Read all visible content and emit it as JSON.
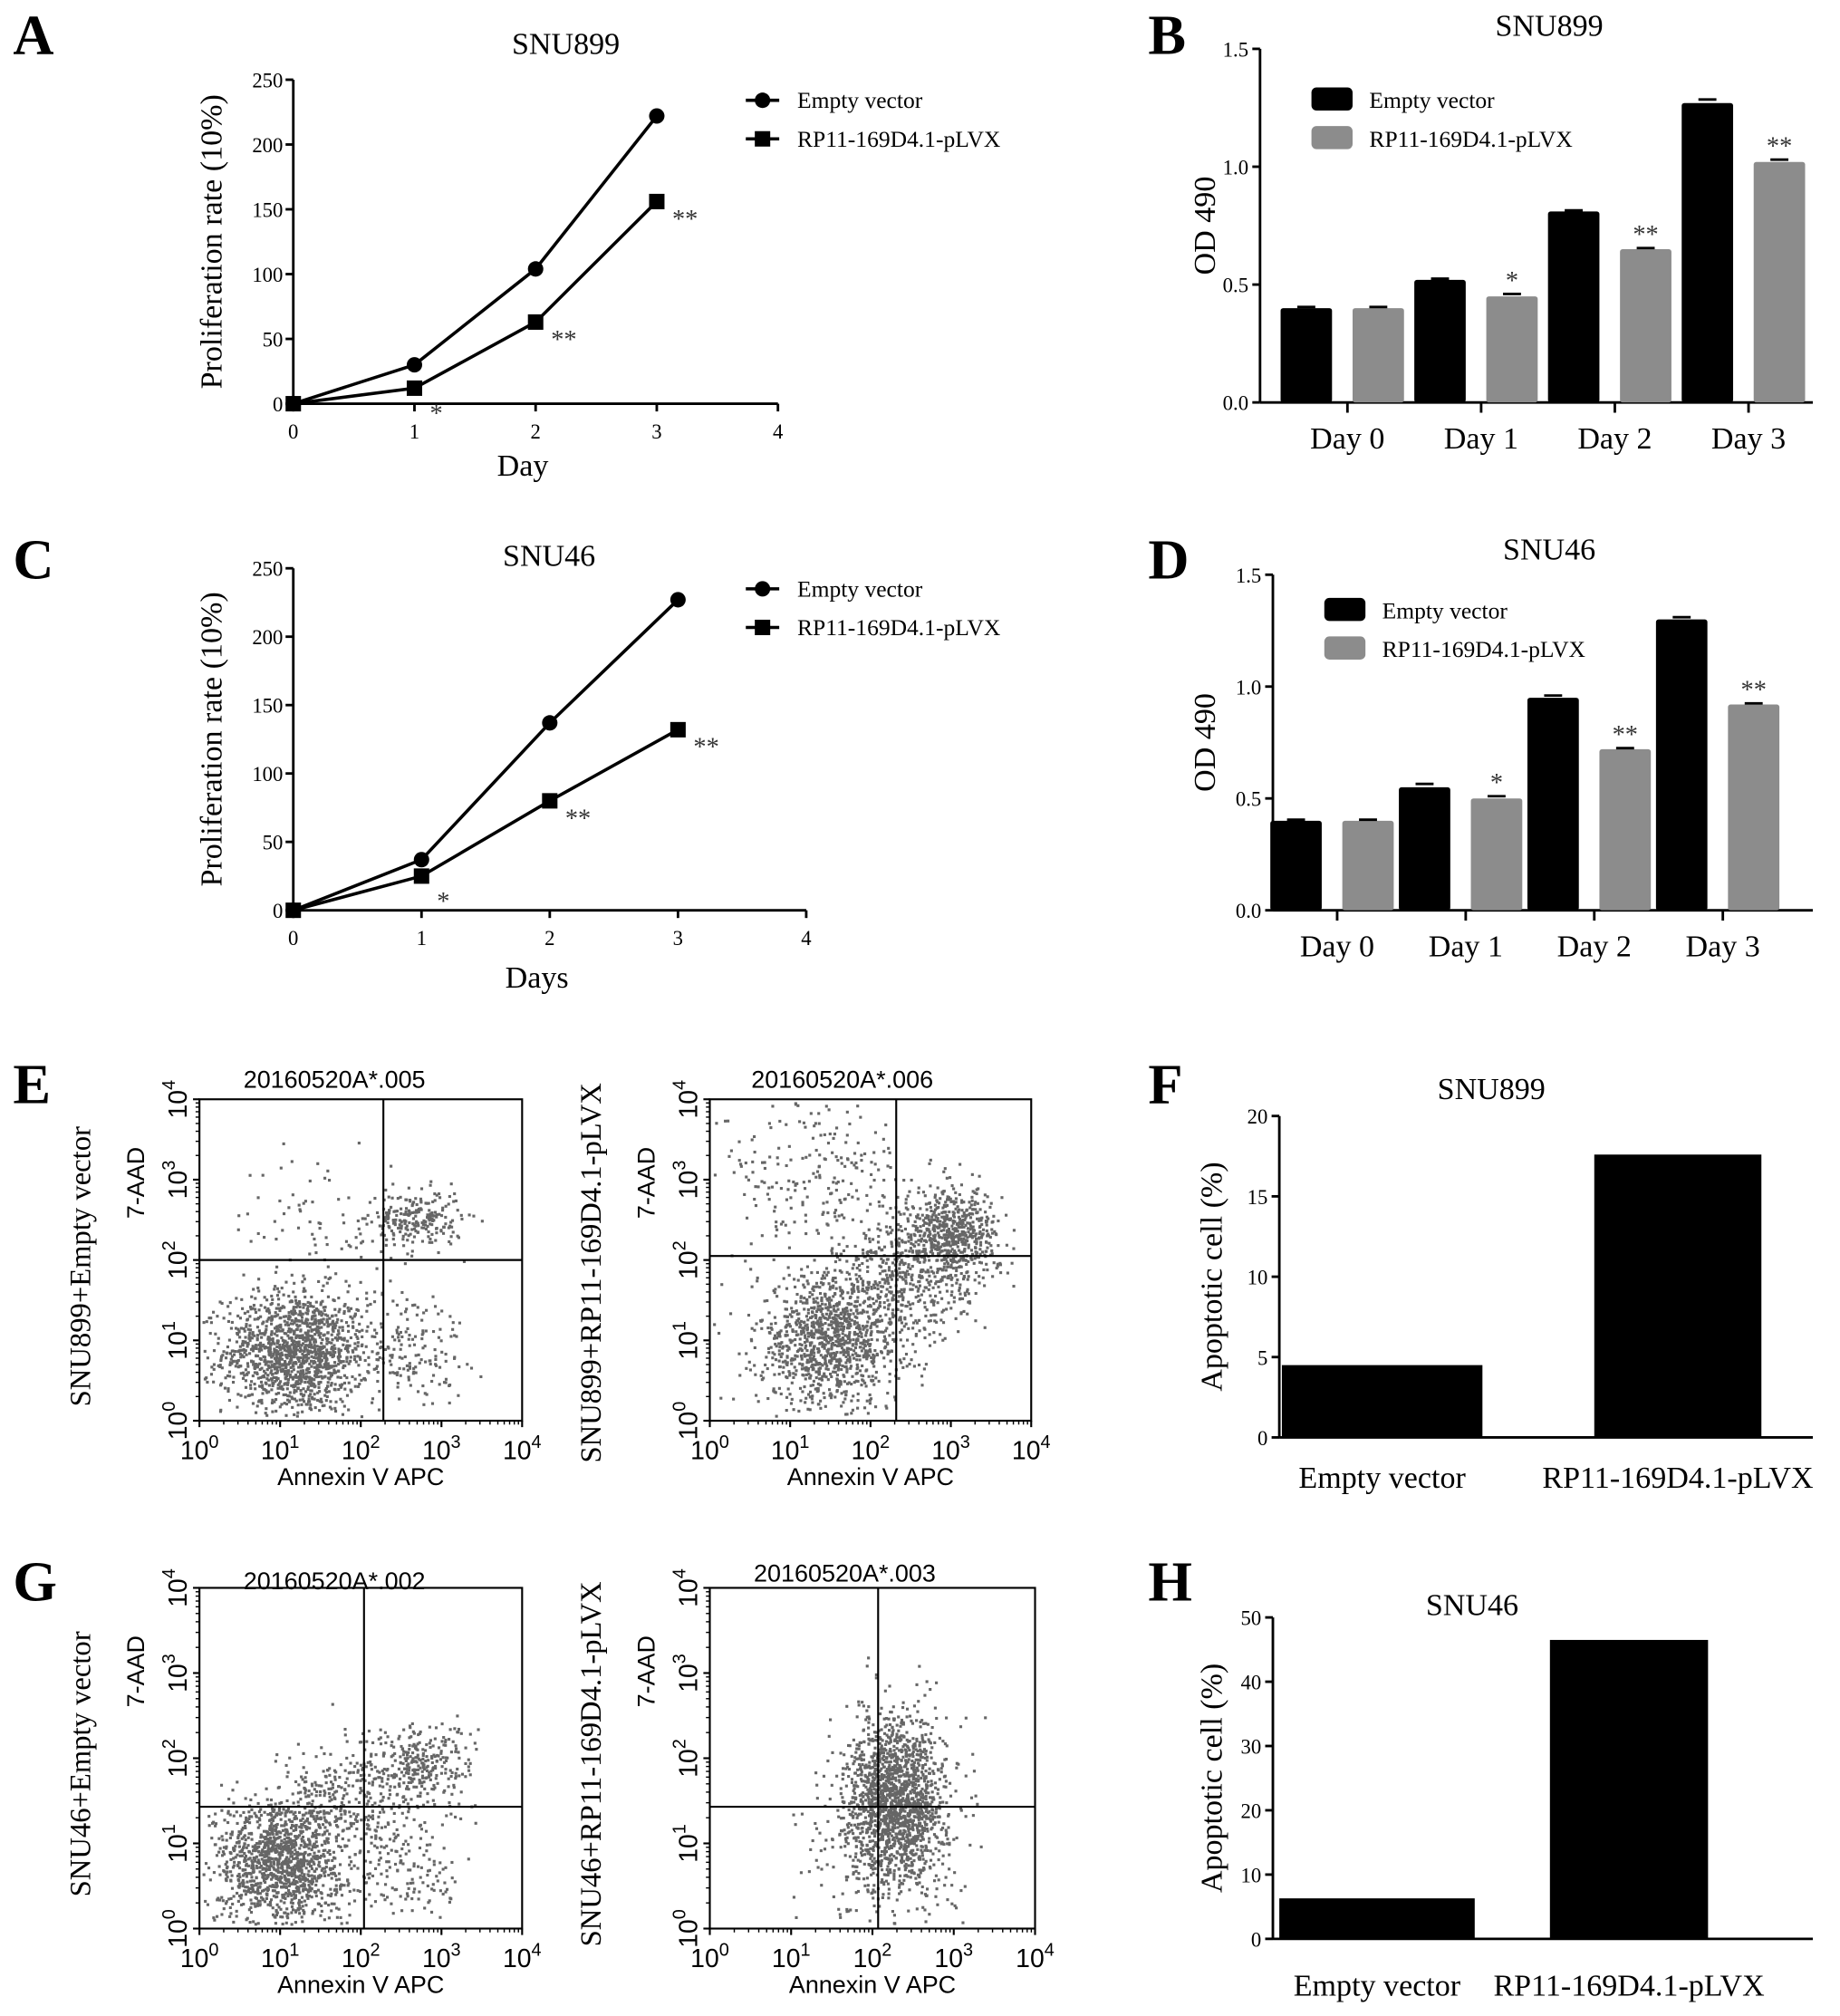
{
  "panel_letters": [
    "A",
    "B",
    "C",
    "D",
    "E",
    "F",
    "G",
    "H"
  ],
  "side_labels": {
    "e_left": "SNU899+Empty vector",
    "e_right": "SNU899+RP11-169D4.1-pLVX",
    "g_left": "SNU46+Empty vector",
    "g_right": "SNU46+RP11-169D4.1-pLVX"
  },
  "colors": {
    "empty_vector": "#000000",
    "rp11": "#8c8c8c",
    "events": "#666666"
  },
  "chart_data": [
    {
      "panel": "A",
      "type": "line",
      "title": "SNU899",
      "xlabel": "Day",
      "ylabel": "Proliferation rate (10%)",
      "x": [
        0,
        1,
        2,
        3
      ],
      "xlim": [
        0,
        4
      ],
      "xticks": [
        0,
        1,
        2,
        3,
        4
      ],
      "ylim": [
        0,
        250
      ],
      "yticks": [
        0,
        50,
        100,
        150,
        200,
        250
      ],
      "series": [
        {
          "name": "Empty vector",
          "marker": "circle",
          "values": [
            0,
            30,
            104,
            222
          ]
        },
        {
          "name": "RP11-169D4.1-pLVX",
          "marker": "square",
          "values": [
            0,
            12,
            63,
            156
          ],
          "significance": [
            "",
            "*",
            "**",
            "**"
          ]
        }
      ],
      "legend": "top-right"
    },
    {
      "panel": "B",
      "type": "bar",
      "title": "SNU899",
      "xlabel": "",
      "ylabel": "OD 490",
      "categories": [
        "Day 0",
        "Day 1",
        "Day 2",
        "Day 3"
      ],
      "ylim": [
        0,
        1.5
      ],
      "yticks": [
        "0.0",
        "0.5",
        "1.0",
        "1.5"
      ],
      "series": [
        {
          "name": "Empty vector",
          "values": [
            0.4,
            0.52,
            0.81,
            1.27
          ],
          "errors": [
            0.005,
            0.005,
            0.005,
            0.015
          ]
        },
        {
          "name": "RP11-169D4.1-pLVX",
          "values": [
            0.4,
            0.45,
            0.65,
            1.02
          ],
          "errors": [
            0.005,
            0.01,
            0.005,
            0.01
          ],
          "significance": [
            "",
            "*",
            "**",
            "**"
          ]
        }
      ],
      "legend": "top-left"
    },
    {
      "panel": "C",
      "type": "line",
      "title": "SNU46",
      "xlabel": "Days",
      "ylabel": "Proliferation rate (10%)",
      "x": [
        0,
        1,
        2,
        3
      ],
      "xlim": [
        0,
        4
      ],
      "xticks": [
        0,
        1,
        2,
        3,
        4
      ],
      "ylim": [
        0,
        250
      ],
      "yticks": [
        0,
        50,
        100,
        150,
        200,
        250
      ],
      "series": [
        {
          "name": "Empty vector",
          "marker": "circle",
          "values": [
            0,
            37,
            137,
            227
          ]
        },
        {
          "name": "RP11-169D4.1-pLVX",
          "marker": "square",
          "values": [
            0,
            25,
            80,
            132
          ],
          "significance": [
            "",
            "*",
            "**",
            "**"
          ]
        }
      ],
      "legend": "top-right"
    },
    {
      "panel": "D",
      "type": "bar",
      "title": "SNU46",
      "xlabel": "",
      "ylabel": "OD 490",
      "categories": [
        "Day 0",
        "Day 1",
        "Day 2",
        "Day 3"
      ],
      "ylim": [
        0,
        1.5
      ],
      "yticks": [
        "0.0",
        "0.5",
        "1.0",
        "1.5"
      ],
      "series": [
        {
          "name": "Empty vector",
          "values": [
            0.4,
            0.55,
            0.95,
            1.3
          ],
          "errors": [
            0.005,
            0.015,
            0.01,
            0.01
          ]
        },
        {
          "name": "RP11-169D4.1-pLVX",
          "values": [
            0.4,
            0.5,
            0.72,
            0.92
          ],
          "errors": [
            0.005,
            0.01,
            0.005,
            0.005
          ],
          "significance": [
            "",
            "*",
            "**",
            "**"
          ]
        }
      ],
      "legend": "top-left"
    },
    {
      "panel": "E-left",
      "type": "scatter",
      "title": "20160520A*.005",
      "xlabel": "Annexin V APC",
      "ylabel": "7-AAD",
      "scale": "log10",
      "xlim_exp": [
        0,
        4
      ],
      "ylim_exp": [
        0,
        4
      ],
      "tick_base": "10",
      "tick_exponents": [
        "0",
        "1",
        "2",
        "3",
        "4"
      ],
      "gate_exp": {
        "x": 2.28,
        "y": 2.0
      },
      "populations_log10": [
        {
          "cx": 1.2,
          "cy": 0.85,
          "sx": 0.45,
          "sy": 0.38,
          "n": 1400
        },
        {
          "cx": 2.7,
          "cy": 2.5,
          "sx": 0.28,
          "sy": 0.18,
          "n": 220
        },
        {
          "cx": 1.6,
          "cy": 2.5,
          "sx": 0.6,
          "sy": 0.4,
          "n": 90
        },
        {
          "cx": 2.6,
          "cy": 0.9,
          "sx": 0.35,
          "sy": 0.4,
          "n": 160
        }
      ]
    },
    {
      "panel": "E-right",
      "type": "scatter",
      "title": "20160520A*.006",
      "xlabel": "Annexin V APC",
      "ylabel": "7-AAD",
      "scale": "log10",
      "xlim_exp": [
        0,
        4
      ],
      "ylim_exp": [
        0,
        4
      ],
      "tick_base": "10",
      "tick_exponents": [
        "0",
        "1",
        "2",
        "3",
        "4"
      ],
      "gate_exp": {
        "x": 2.32,
        "y": 2.05
      },
      "populations_log10": [
        {
          "cx": 1.5,
          "cy": 1.0,
          "sx": 0.45,
          "sy": 0.42,
          "n": 1100
        },
        {
          "cx": 3.0,
          "cy": 2.3,
          "sx": 0.3,
          "sy": 0.3,
          "n": 650
        },
        {
          "cx": 2.4,
          "cy": 1.7,
          "sx": 0.4,
          "sy": 0.4,
          "n": 400
        },
        {
          "cx": 1.3,
          "cy": 3.0,
          "sx": 0.6,
          "sy": 0.5,
          "n": 220
        }
      ]
    },
    {
      "panel": "G-left",
      "type": "scatter",
      "title": "20160520A*.002",
      "xlabel": "Annexin V APC",
      "ylabel": "7-AAD",
      "scale": "log10",
      "xlim_exp": [
        0,
        4
      ],
      "ylim_exp": [
        0,
        4
      ],
      "tick_base": "10",
      "tick_exponents": [
        "0",
        "1",
        "2",
        "3",
        "4"
      ],
      "gate_exp": {
        "x": 2.04,
        "y": 1.43
      },
      "populations_log10": [
        {
          "cx": 1.0,
          "cy": 0.8,
          "sx": 0.4,
          "sy": 0.38,
          "n": 1300
        },
        {
          "cx": 2.7,
          "cy": 1.9,
          "sx": 0.35,
          "sy": 0.25,
          "n": 320
        },
        {
          "cx": 2.6,
          "cy": 0.7,
          "sx": 0.35,
          "sy": 0.35,
          "n": 160
        },
        {
          "cx": 1.8,
          "cy": 1.5,
          "sx": 0.35,
          "sy": 0.3,
          "n": 220
        }
      ]
    },
    {
      "panel": "G-right",
      "type": "scatter",
      "title": "20160520A*.003",
      "xlabel": "Annexin V APC",
      "ylabel": "7-AAD",
      "scale": "log10",
      "xlim_exp": [
        0,
        4
      ],
      "ylim_exp": [
        0,
        4
      ],
      "tick_base": "10",
      "tick_exponents": [
        "0",
        "1",
        "2",
        "3",
        "4"
      ],
      "gate_exp": {
        "x": 2.07,
        "y": 1.43
      },
      "populations_log10": [
        {
          "cx": 2.3,
          "cy": 1.5,
          "sx": 0.3,
          "sy": 0.5,
          "n": 1600
        },
        {
          "cx": 2.0,
          "cy": 1.0,
          "sx": 0.5,
          "sy": 0.6,
          "n": 220
        }
      ]
    },
    {
      "panel": "F",
      "type": "bar",
      "title": "SNU899",
      "xlabel": "",
      "ylabel": "Apoptotic cell (%)",
      "categories": [
        "Empty vector",
        "RP11-169D4.1-pLVX"
      ],
      "ylim": [
        0,
        20
      ],
      "yticks": [
        "0",
        "5",
        "10",
        "15",
        "20"
      ],
      "series": [
        {
          "name": "Apoptotic cell",
          "values": [
            4.5,
            17.6
          ]
        }
      ]
    },
    {
      "panel": "H",
      "type": "bar",
      "title": "SNU46",
      "xlabel": "",
      "ylabel": "Apoptotic cell (%)",
      "categories": [
        "Empty vector",
        "RP11-169D4.1-pLVX"
      ],
      "ylim": [
        0,
        50
      ],
      "yticks": [
        "0",
        "10",
        "20",
        "30",
        "40",
        "50"
      ],
      "series": [
        {
          "name": "Apoptotic cell",
          "values": [
            6.3,
            46.5
          ]
        }
      ]
    }
  ]
}
